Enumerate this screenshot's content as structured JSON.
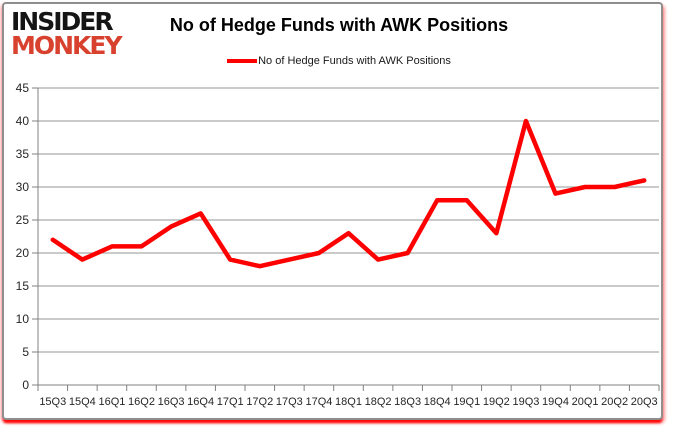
{
  "branding": {
    "line1": "INSIDER",
    "line2": "MONKEY",
    "accent_color": "#d9412f"
  },
  "header": {
    "title": "No of Hedge Funds with AWK Positions"
  },
  "legend": {
    "label": "No of Hedge Funds with AWK Positions",
    "line_color": "#ff0000"
  },
  "chart_data": {
    "type": "line",
    "title": "No of Hedge Funds with AWK Positions",
    "categories": [
      "15Q3",
      "15Q4",
      "16Q1",
      "16Q2",
      "16Q3",
      "16Q4",
      "17Q1",
      "17Q2",
      "17Q3",
      "17Q4",
      "18Q1",
      "18Q2",
      "18Q3",
      "18Q4",
      "19Q1",
      "19Q2",
      "19Q3",
      "19Q4",
      "20Q1",
      "20Q2",
      "20Q3"
    ],
    "series": [
      {
        "name": "No of Hedge Funds with AWK Positions",
        "values": [
          22,
          19,
          21,
          21,
          24,
          26,
          19,
          18,
          19,
          20,
          23,
          19,
          20,
          28,
          28,
          23,
          40,
          29,
          30,
          30,
          31
        ],
        "color": "#ff0000"
      }
    ],
    "xlabel": "",
    "ylabel": "",
    "ylim": [
      0,
      45
    ],
    "ytick_step": 5,
    "yticks": [
      0,
      5,
      10,
      15,
      20,
      25,
      30,
      35,
      40,
      45
    ],
    "grid": "horizontal",
    "legend_position": "top"
  },
  "colors": {
    "line": "#ff0000",
    "gridline": "#969696",
    "axis": "#808080",
    "tick_label": "#262626",
    "frame_border": "#8e8e8e",
    "frame_shadow": "#ff0000"
  }
}
